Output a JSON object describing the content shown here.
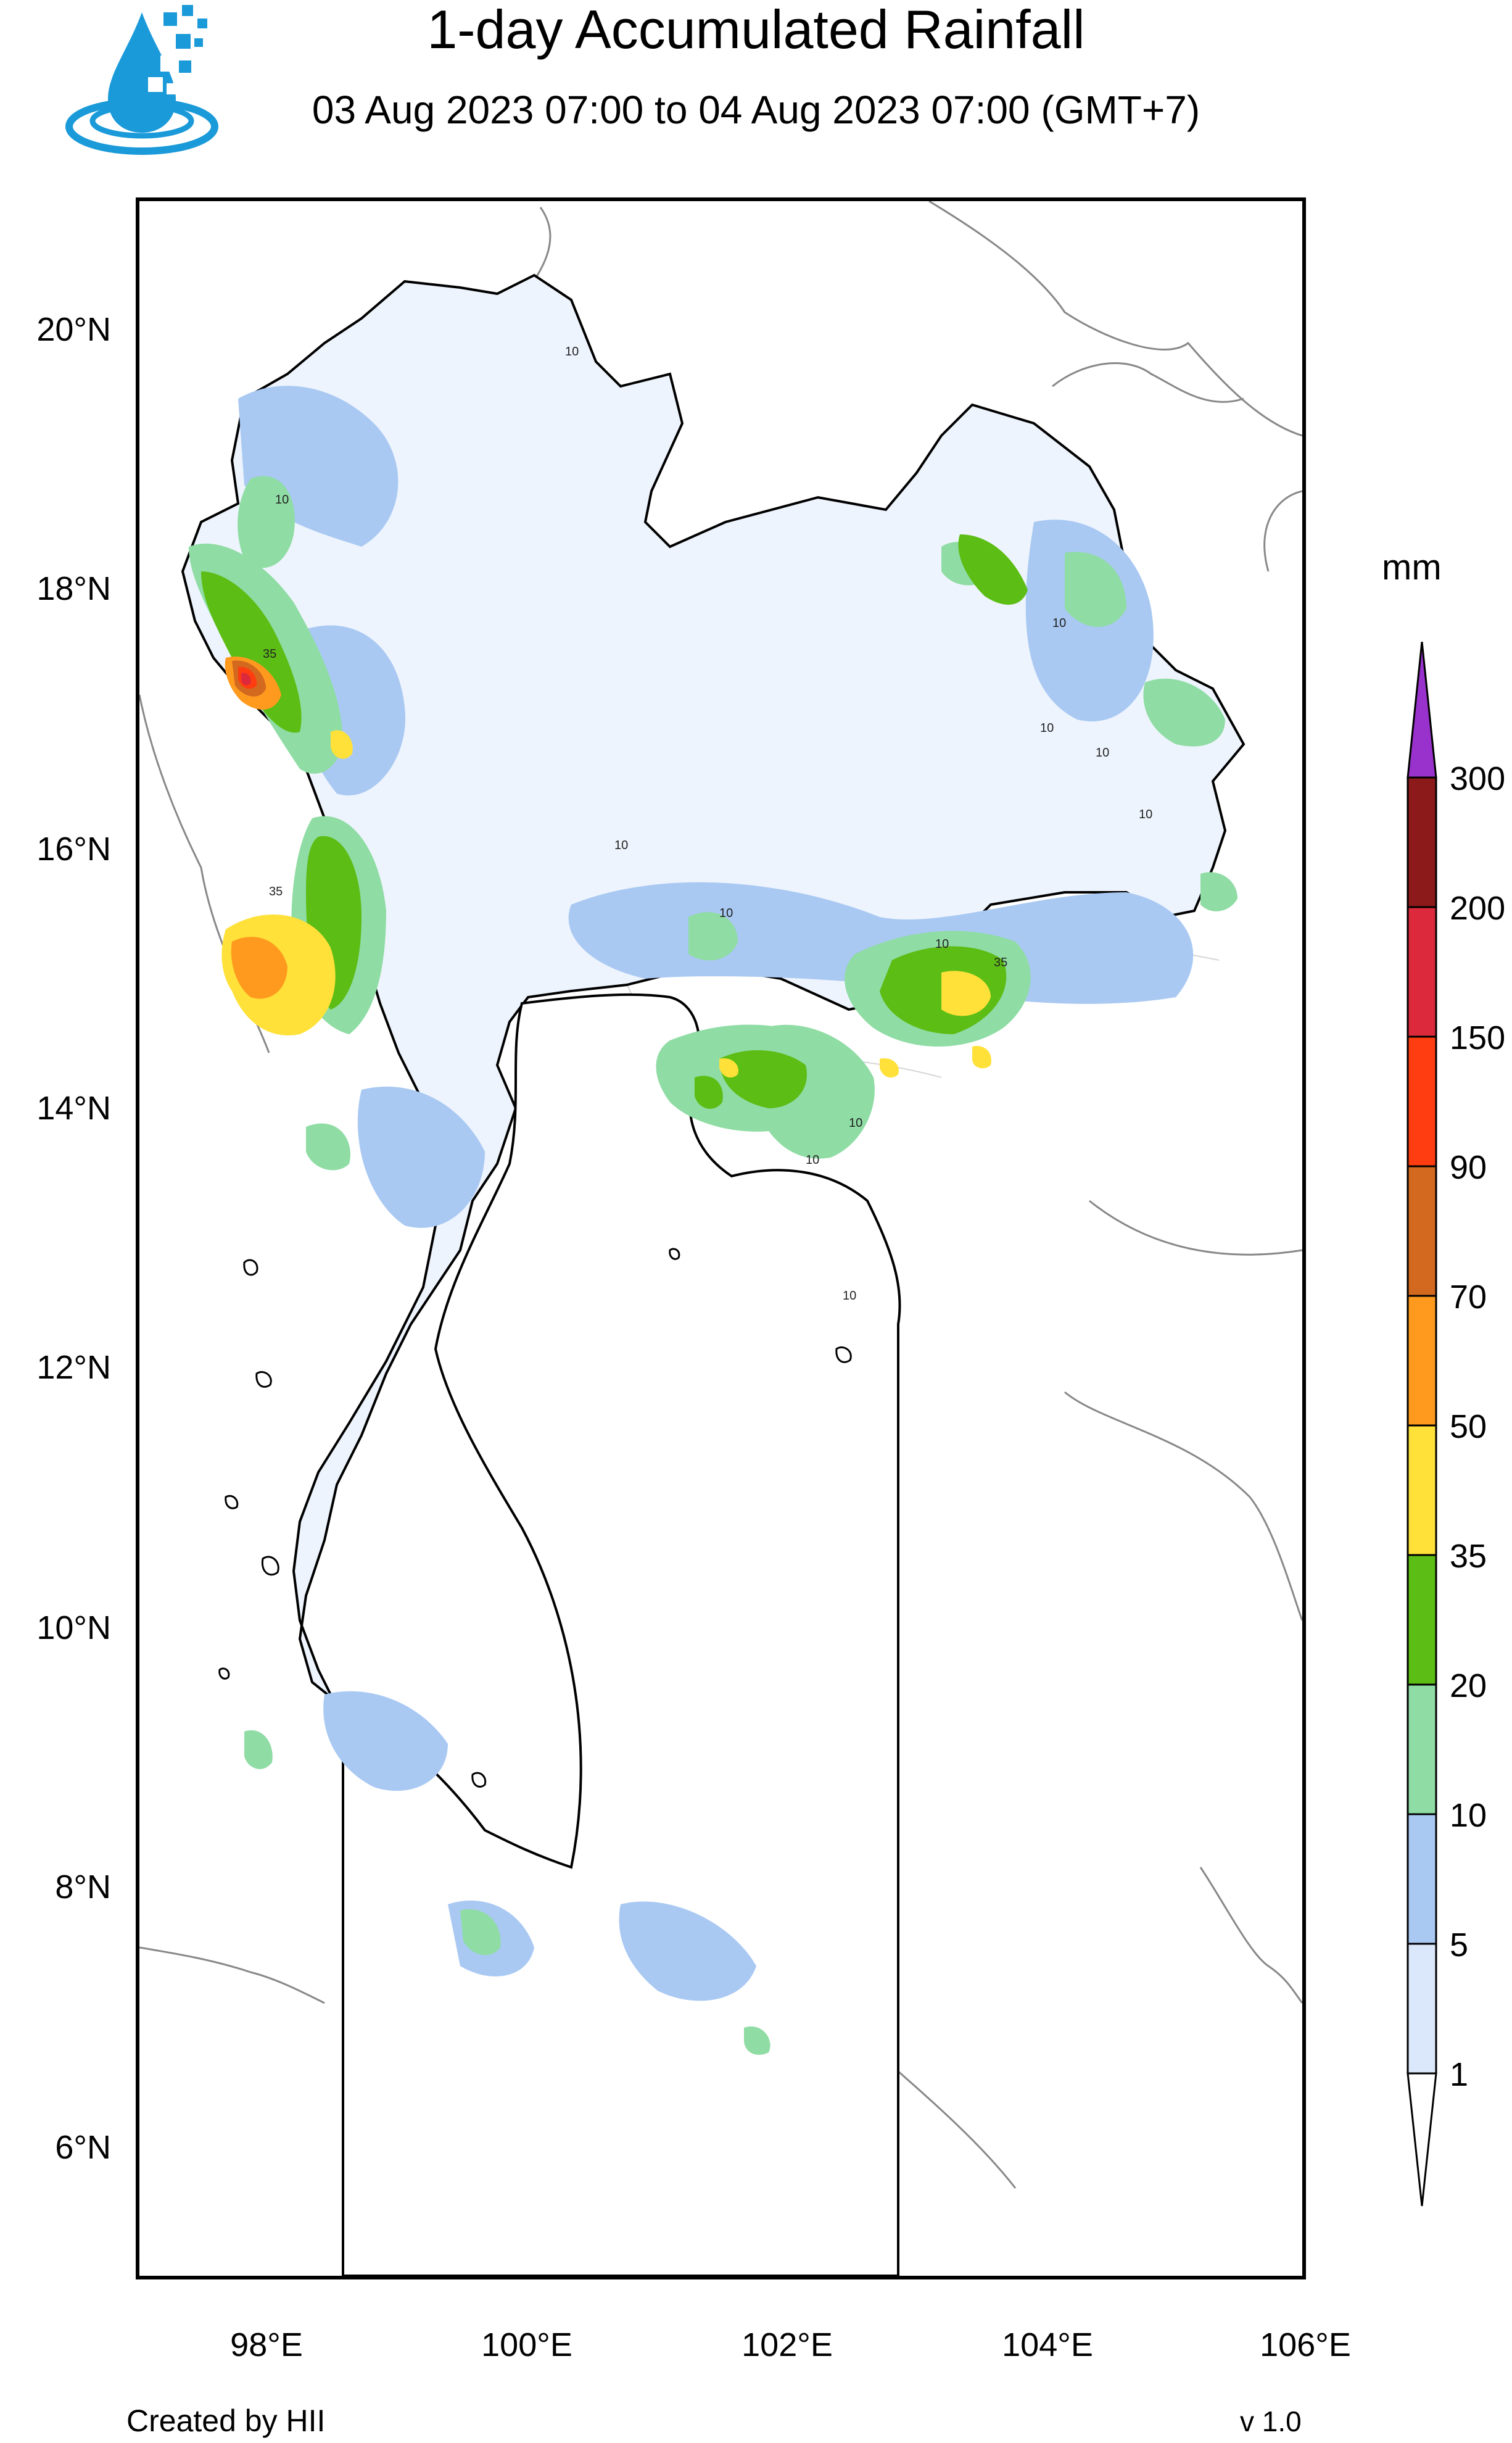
{
  "header": {
    "title": "1-day Accumulated Rainfall",
    "subtitle": "03 Aug 2023 07:00 to 04 Aug 2023 07:00 (GMT+7)"
  },
  "logo": {
    "icon": "water-drop-pixel-logo-icon",
    "color": "#1a9ad9"
  },
  "map": {
    "lat_ticks": [
      "20°N",
      "18°N",
      "16°N",
      "14°N",
      "12°N",
      "10°N",
      "8°N",
      "6°N"
    ],
    "lon_ticks": [
      "98°E",
      "100°E",
      "102°E",
      "104°E",
      "106°E"
    ],
    "contour_labels": [
      "10",
      "10",
      "10",
      "10",
      "10",
      "10",
      "10",
      "10",
      "10",
      "10",
      "10",
      "10",
      "35",
      "35",
      "35"
    ]
  },
  "colorbar": {
    "unit": "mm",
    "levels": [
      "1",
      "5",
      "10",
      "20",
      "35",
      "50",
      "70",
      "90",
      "150",
      "200",
      "300"
    ],
    "colors": [
      "#dbe8fb",
      "#a9c9f3",
      "#8fdca4",
      "#5cbd14",
      "#ffe13a",
      "#ff9a1f",
      "#d2691e",
      "#ff3d10",
      "#dc2a3c",
      "#8c1a1a",
      "#9932cc"
    ]
  },
  "footer": {
    "credit": "Created by HII",
    "version": "v 1.0"
  }
}
